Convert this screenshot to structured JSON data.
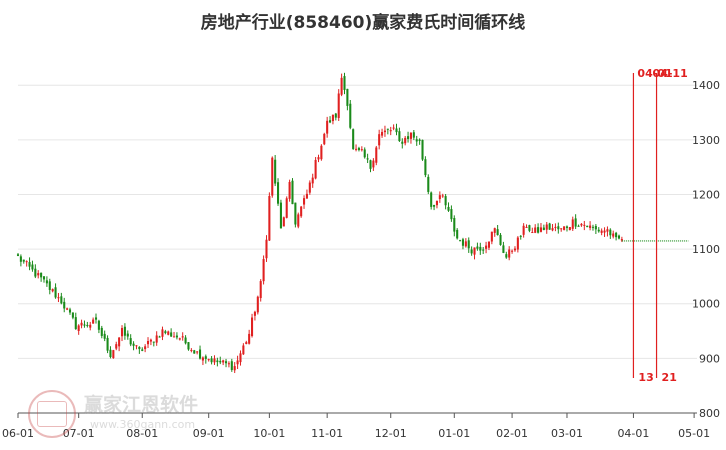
{
  "chart_data": {
    "type": "candlestick",
    "title": "房地产行业(858460)赢家费氏时间循环线",
    "ylim": [
      800,
      1470
    ],
    "y_ticks": [
      800,
      900,
      1000,
      1100,
      1200,
      1300,
      1400
    ],
    "x_ticks": [
      {
        "label": "06-01",
        "i": 0
      },
      {
        "label": "07-01",
        "i": 21
      },
      {
        "label": "08-01",
        "i": 43
      },
      {
        "label": "09-01",
        "i": 66
      },
      {
        "label": "10-01",
        "i": 87
      },
      {
        "label": "11-01",
        "i": 107
      },
      {
        "label": "12-01",
        "i": 129
      },
      {
        "label": "01-01",
        "i": 151
      },
      {
        "label": "02-01",
        "i": 171
      },
      {
        "label": "03-01",
        "i": 190
      },
      {
        "label": "04-01",
        "i": 213
      },
      {
        "label": "05-01",
        "i": 234
      }
    ],
    "anchors": [
      [
        0,
        1085
      ],
      [
        8,
        1045
      ],
      [
        15,
        1005
      ],
      [
        20,
        960
      ],
      [
        27,
        965
      ],
      [
        32,
        908
      ],
      [
        36,
        948
      ],
      [
        42,
        912
      ],
      [
        50,
        950
      ],
      [
        56,
        938
      ],
      [
        62,
        910
      ],
      [
        68,
        895
      ],
      [
        75,
        885
      ],
      [
        80,
        945
      ],
      [
        84,
        1035
      ],
      [
        86,
        1125
      ],
      [
        88,
        1265
      ],
      [
        91,
        1135
      ],
      [
        94,
        1215
      ],
      [
        96,
        1150
      ],
      [
        100,
        1200
      ],
      [
        104,
        1275
      ],
      [
        107,
        1330
      ],
      [
        110,
        1345
      ],
      [
        112,
        1415
      ],
      [
        114,
        1370
      ],
      [
        116,
        1280
      ],
      [
        119,
        1275
      ],
      [
        122,
        1250
      ],
      [
        125,
        1310
      ],
      [
        130,
        1320
      ],
      [
        132,
        1295
      ],
      [
        136,
        1310
      ],
      [
        139,
        1295
      ],
      [
        143,
        1180
      ],
      [
        147,
        1195
      ],
      [
        152,
        1120
      ],
      [
        157,
        1100
      ],
      [
        161,
        1105
      ],
      [
        165,
        1135
      ],
      [
        169,
        1085
      ],
      [
        173,
        1115
      ],
      [
        176,
        1145
      ],
      [
        178,
        1130
      ],
      [
        183,
        1140
      ],
      [
        188,
        1135
      ],
      [
        192,
        1150
      ],
      [
        196,
        1145
      ],
      [
        200,
        1135
      ],
      [
        204,
        1135
      ],
      [
        207,
        1115
      ],
      [
        209,
        1120
      ]
    ],
    "flat_value": 1115,
    "flat_end": 232,
    "cycle_lines": [
      {
        "top_label": "04-01",
        "bottom_label": "13",
        "i": 213
      },
      {
        "top_label": "04-11",
        "bottom_label": "21",
        "i": 221
      }
    ],
    "colors": {
      "up": "#e02020",
      "down": "#1a8a1a",
      "cycle": "#e02020",
      "flat": "#1a8a1a"
    }
  },
  "watermark": {
    "name": "赢家江恩软件",
    "url": "www.360gann.com"
  }
}
